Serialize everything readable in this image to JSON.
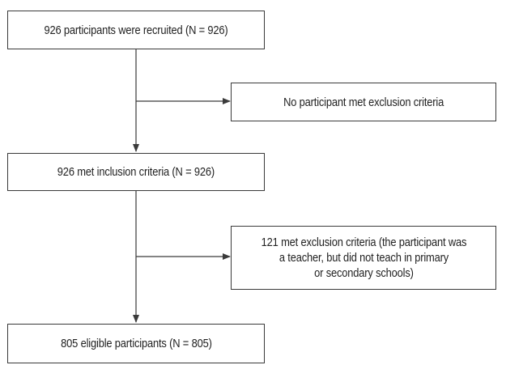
{
  "flowchart": {
    "boxes": {
      "recruited": "926 participants were recruited (N = 926)",
      "exclusion_none": "No participant met exclusion criteria",
      "inclusion": "926 met inclusion criteria (N = 926)",
      "exclusion_121": "121 met exclusion criteria (the participant was\na teacher, but did not teach in primary\nor secondary schools)",
      "eligible": "805 eligible participants (N = 805)"
    }
  }
}
